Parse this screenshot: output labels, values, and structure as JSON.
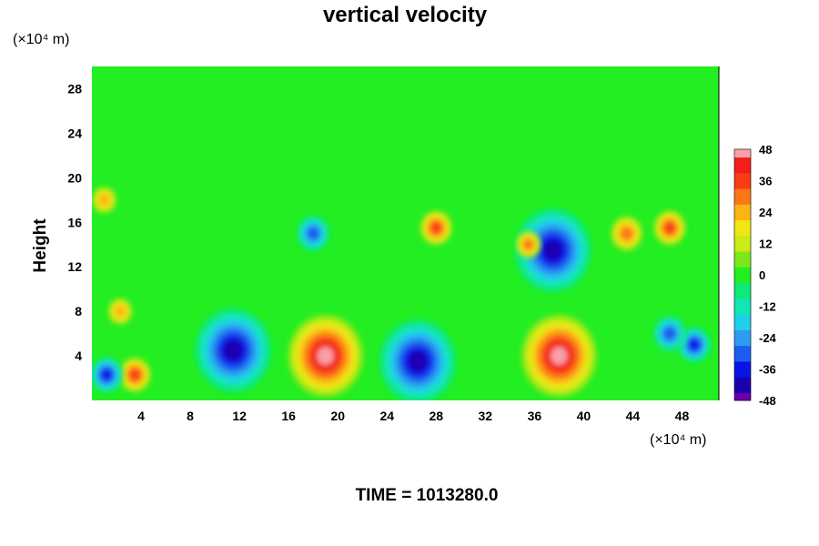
{
  "chart_data": {
    "type": "heatmap",
    "title": "vertical velocity",
    "ylabel": "Height",
    "xlabel": "",
    "x_unit": "(×10⁴ m)",
    "y_unit": "(×10⁴ m)",
    "xlim": [
      0,
      51
    ],
    "ylim": [
      0,
      30
    ],
    "x_ticks": [
      4,
      8,
      12,
      16,
      20,
      24,
      28,
      32,
      36,
      40,
      44,
      48
    ],
    "y_ticks": [
      4,
      8,
      12,
      16,
      20,
      24,
      28
    ],
    "colorbar": {
      "range": [
        -48,
        48
      ],
      "ticks": [
        48,
        36,
        24,
        12,
        0,
        -12,
        -24,
        -36,
        -48
      ]
    },
    "background_value": 0,
    "features": [
      {
        "x": 19,
        "y": 4,
        "value": 48
      },
      {
        "x": 38,
        "y": 4,
        "value": 48
      },
      {
        "x": 11.5,
        "y": 4.5,
        "value": -40
      },
      {
        "x": 26.5,
        "y": 3.5,
        "value": -40
      },
      {
        "x": 3.5,
        "y": 2.3,
        "value": 36
      },
      {
        "x": 1.2,
        "y": 2.3,
        "value": -36
      },
      {
        "x": 2.3,
        "y": 8,
        "value": 24
      },
      {
        "x": 28,
        "y": 15.5,
        "value": 36
      },
      {
        "x": 47,
        "y": 15.5,
        "value": 36
      },
      {
        "x": 43.5,
        "y": 15,
        "value": 30
      },
      {
        "x": 37.5,
        "y": 13.5,
        "value": -40
      },
      {
        "x": 35.5,
        "y": 14,
        "value": 28
      },
      {
        "x": 18,
        "y": 15,
        "value": -30
      },
      {
        "x": 49,
        "y": 5,
        "value": -36
      },
      {
        "x": 47,
        "y": 6,
        "value": -30
      },
      {
        "x": 1,
        "y": 18,
        "value": 24
      }
    ]
  },
  "footer": {
    "time_label": "TIME = 1013280.0"
  }
}
